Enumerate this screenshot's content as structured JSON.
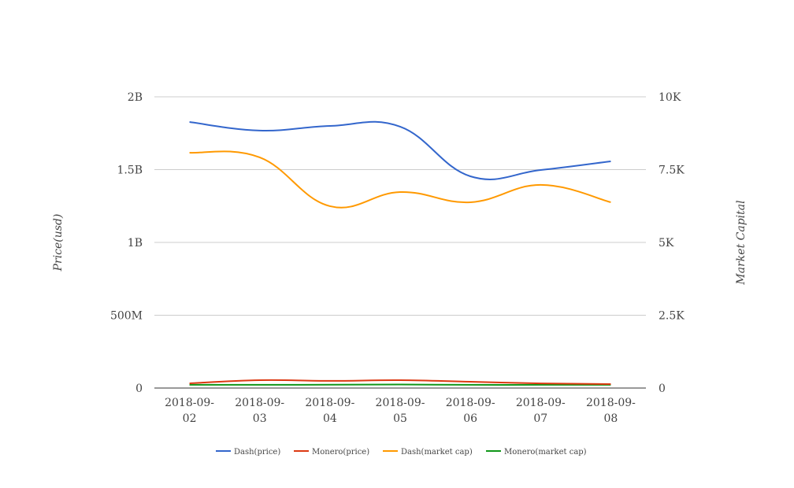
{
  "chart_data": {
    "type": "line",
    "title": "",
    "xlabel": "",
    "ylabel": "Price(usd)",
    "y2label": "Market Capital",
    "categories": [
      [
        "2018-09-",
        "02"
      ],
      [
        "2018-09-",
        "03"
      ],
      [
        "2018-09-",
        "04"
      ],
      [
        "2018-09-",
        "05"
      ],
      [
        "2018-09-",
        "06"
      ],
      [
        "2018-09-",
        "07"
      ],
      [
        "2018-09-",
        "08"
      ]
    ],
    "ylim": [
      0,
      2000000000
    ],
    "y2lim": [
      0,
      10000
    ],
    "yticks": [
      "0",
      "500M",
      "1B",
      "1.5B",
      "2B"
    ],
    "y2ticks": [
      "0",
      "2.5K",
      "5K",
      "7.5K",
      "10K"
    ],
    "grid": true,
    "legend_position": "bottom",
    "series": [
      {
        "name": "Dash(price)",
        "color": "#3366cc",
        "values": [
          1827000000,
          1768000000,
          1800000000,
          1795000000,
          1454000000,
          1497000000,
          1557000000
        ]
      },
      {
        "name": "Monero(price)",
        "color": "#dc3912",
        "values": [
          32000000,
          54000000,
          49000000,
          54000000,
          43000000,
          32000000,
          27000000
        ]
      },
      {
        "name": "Dash(market cap)",
        "color": "#ff9900",
        "values": [
          1616000000,
          1584000000,
          1249000000,
          1346000000,
          1276000000,
          1395000000,
          1276000000
        ]
      },
      {
        "name": "Monero(market cap)",
        "color": "#109618",
        "values": [
          22000000,
          22000000,
          23000000,
          24000000,
          22000000,
          22000000,
          22000000
        ]
      }
    ]
  }
}
